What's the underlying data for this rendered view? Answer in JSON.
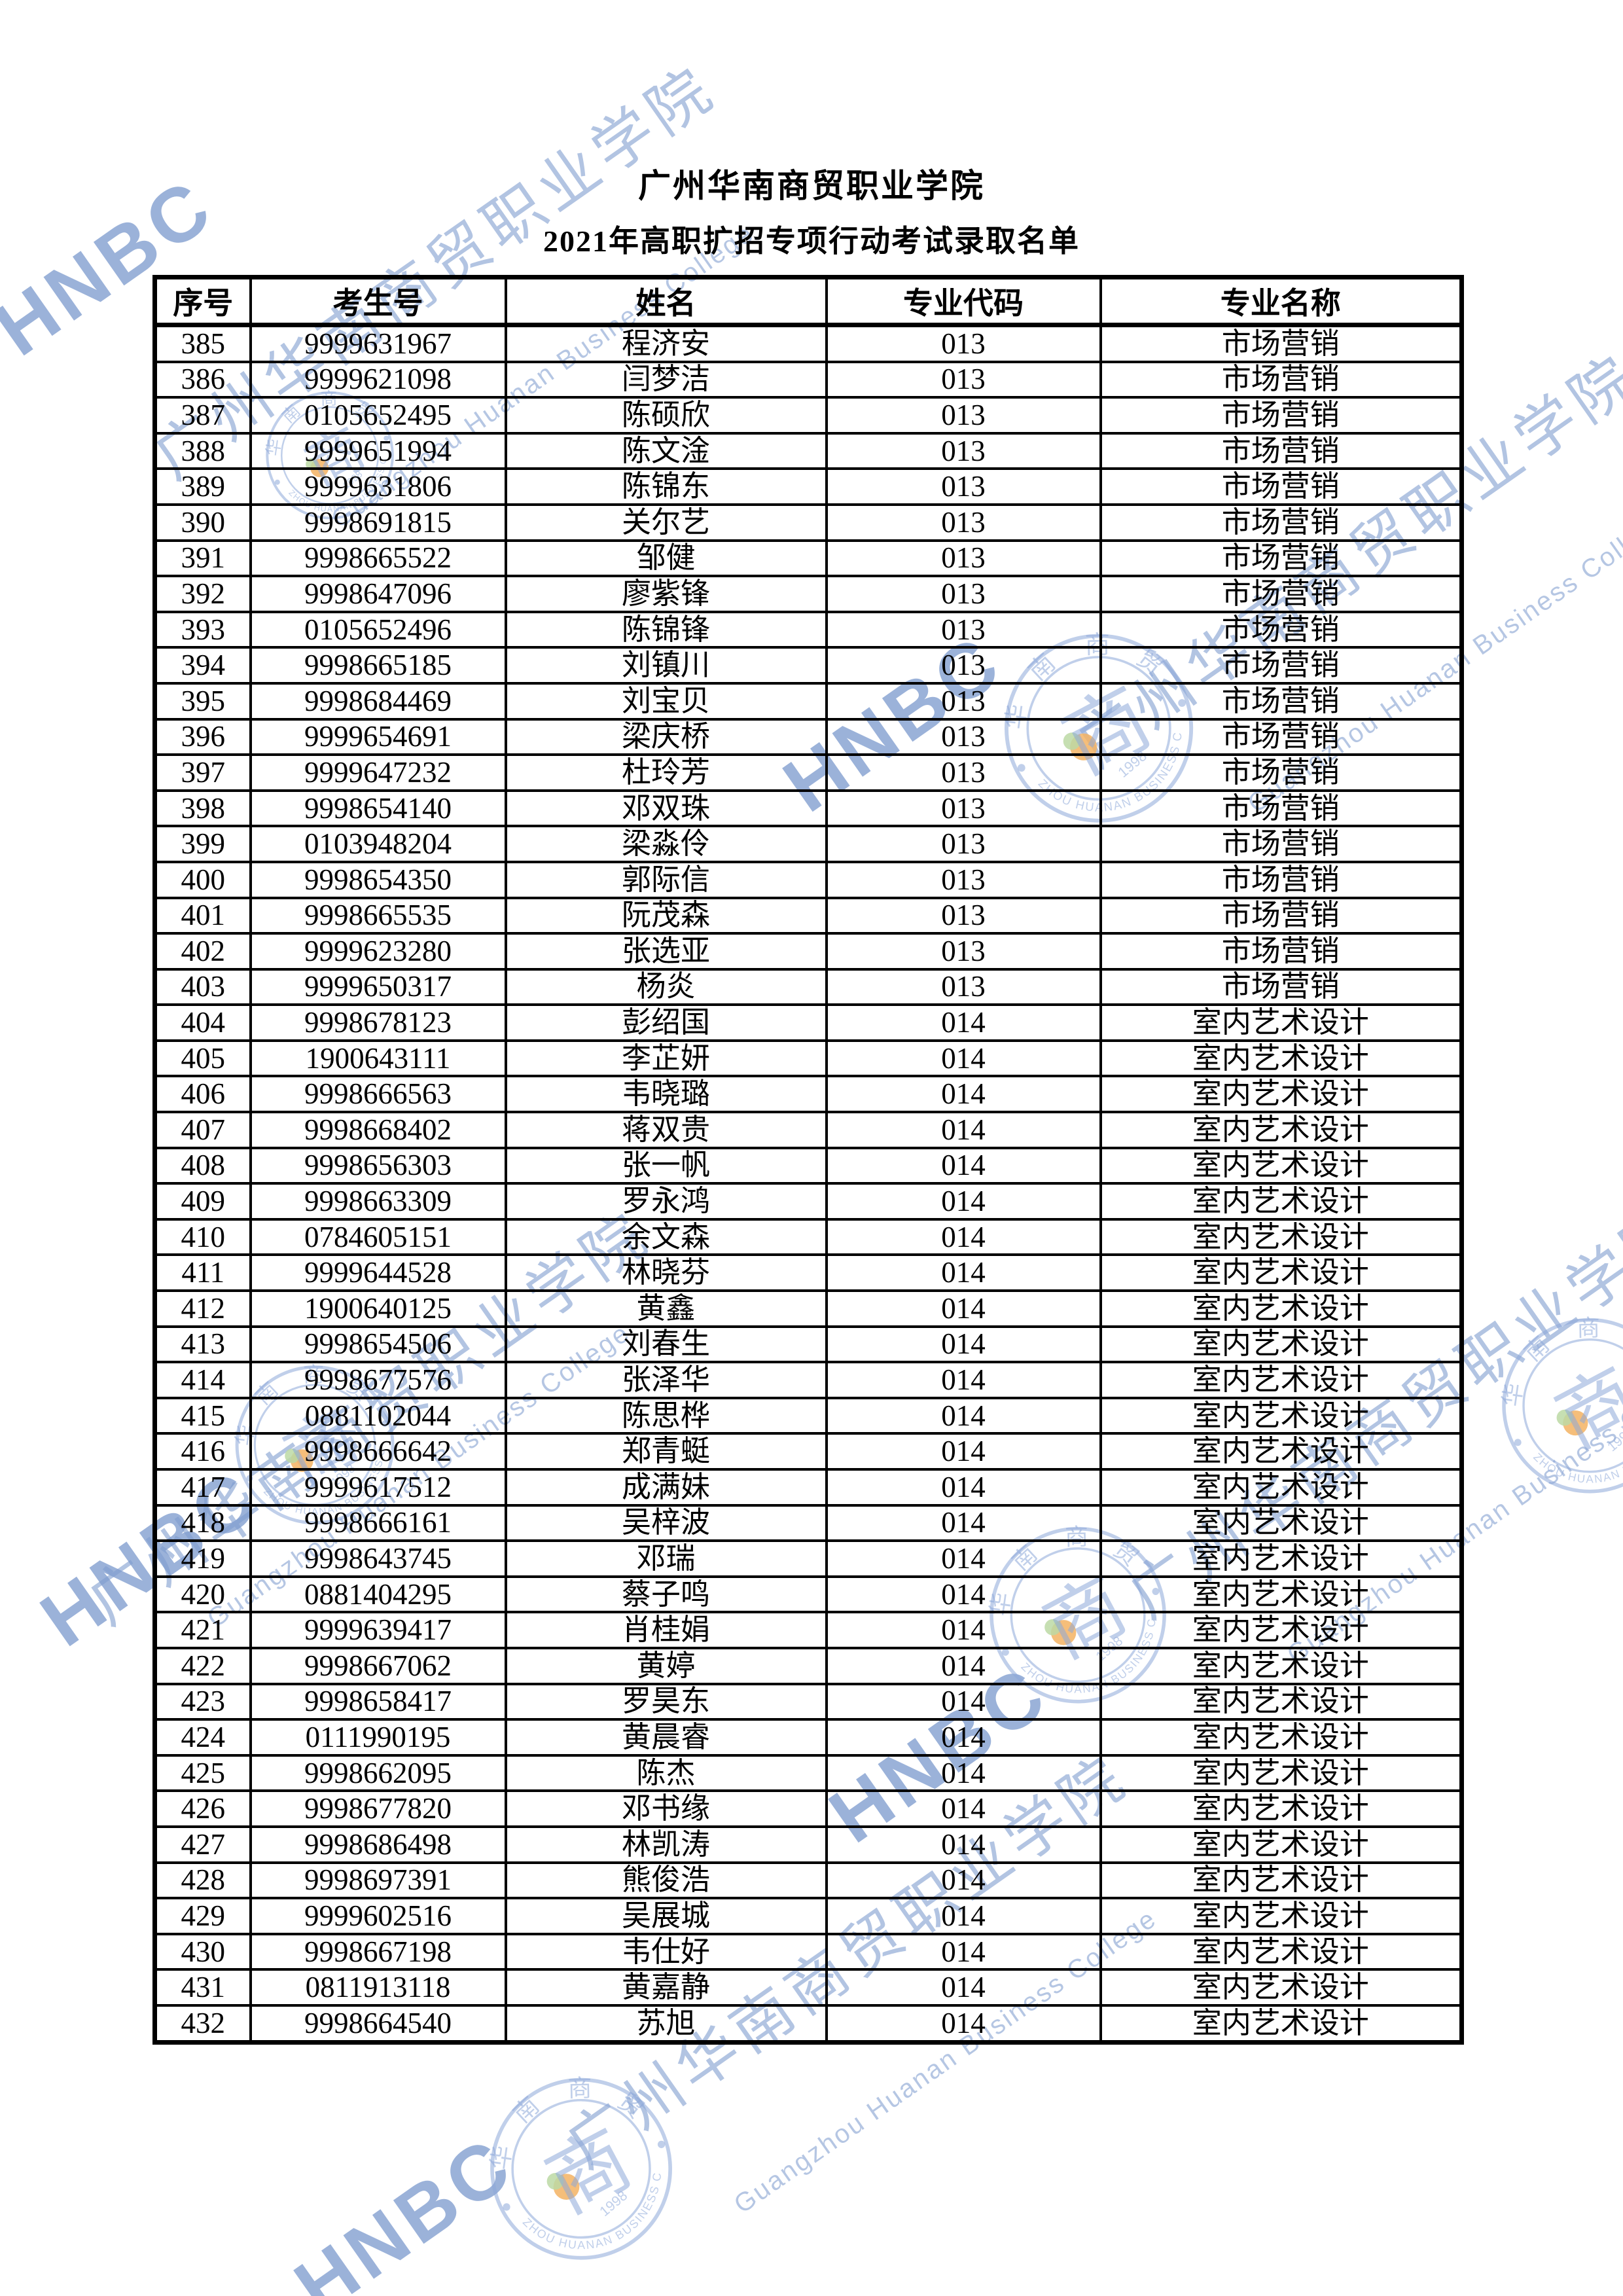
{
  "page": {
    "title_line1": "广州华南商贸职业学院",
    "title_line2": "2021年高职扩招专项行动考试录取名单"
  },
  "table": {
    "headers": [
      "序号",
      "考生号",
      "姓名",
      "专业代码",
      "专业名称"
    ],
    "rows": [
      [
        "385",
        "9999631967",
        "程济安",
        "013",
        "市场营销"
      ],
      [
        "386",
        "9999621098",
        "闫梦洁",
        "013",
        "市场营销"
      ],
      [
        "387",
        "0105652495",
        "陈硕欣",
        "013",
        "市场营销"
      ],
      [
        "388",
        "9999651994",
        "陈文淦",
        "013",
        "市场营销"
      ],
      [
        "389",
        "9999631806",
        "陈锦东",
        "013",
        "市场营销"
      ],
      [
        "390",
        "9998691815",
        "关尔艺",
        "013",
        "市场营销"
      ],
      [
        "391",
        "9998665522",
        "邹健",
        "013",
        "市场营销"
      ],
      [
        "392",
        "9998647096",
        "廖紫锋",
        "013",
        "市场营销"
      ],
      [
        "393",
        "0105652496",
        "陈锦锋",
        "013",
        "市场营销"
      ],
      [
        "394",
        "9998665185",
        "刘镇川",
        "013",
        "市场营销"
      ],
      [
        "395",
        "9998684469",
        "刘宝贝",
        "013",
        "市场营销"
      ],
      [
        "396",
        "9999654691",
        "梁庆桥",
        "013",
        "市场营销"
      ],
      [
        "397",
        "9999647232",
        "杜玲芳",
        "013",
        "市场营销"
      ],
      [
        "398",
        "9998654140",
        "邓双珠",
        "013",
        "市场营销"
      ],
      [
        "399",
        "0103948204",
        "梁淼伶",
        "013",
        "市场营销"
      ],
      [
        "400",
        "9998654350",
        "郭际信",
        "013",
        "市场营销"
      ],
      [
        "401",
        "9998665535",
        "阮茂森",
        "013",
        "市场营销"
      ],
      [
        "402",
        "9999623280",
        "张选亚",
        "013",
        "市场营销"
      ],
      [
        "403",
        "9999650317",
        "杨炎",
        "013",
        "市场营销"
      ],
      [
        "404",
        "9998678123",
        "彭绍国",
        "014",
        "室内艺术设计"
      ],
      [
        "405",
        "1900643111",
        "李芷妍",
        "014",
        "室内艺术设计"
      ],
      [
        "406",
        "9998666563",
        "韦晓璐",
        "014",
        "室内艺术设计"
      ],
      [
        "407",
        "9998668402",
        "蒋双贵",
        "014",
        "室内艺术设计"
      ],
      [
        "408",
        "9998656303",
        "张一帆",
        "014",
        "室内艺术设计"
      ],
      [
        "409",
        "9998663309",
        "罗永鸿",
        "014",
        "室内艺术设计"
      ],
      [
        "410",
        "0784605151",
        "余文森",
        "014",
        "室内艺术设计"
      ],
      [
        "411",
        "9999644528",
        "林晓芬",
        "014",
        "室内艺术设计"
      ],
      [
        "412",
        "1900640125",
        "黄鑫",
        "014",
        "室内艺术设计"
      ],
      [
        "413",
        "9998654506",
        "刘春生",
        "014",
        "室内艺术设计"
      ],
      [
        "414",
        "9998677576",
        "张泽华",
        "014",
        "室内艺术设计"
      ],
      [
        "415",
        "0881102044",
        "陈思桦",
        "014",
        "室内艺术设计"
      ],
      [
        "416",
        "9998666642",
        "郑青蜓",
        "014",
        "室内艺术设计"
      ],
      [
        "417",
        "9999617512",
        "成满妹",
        "014",
        "室内艺术设计"
      ],
      [
        "418",
        "9998666161",
        "吴梓波",
        "014",
        "室内艺术设计"
      ],
      [
        "419",
        "9998643745",
        "邓瑞",
        "014",
        "室内艺术设计"
      ],
      [
        "420",
        "0881404295",
        "蔡子鸣",
        "014",
        "室内艺术设计"
      ],
      [
        "421",
        "9999639417",
        "肖桂娟",
        "014",
        "室内艺术设计"
      ],
      [
        "422",
        "9998667062",
        "黄婷",
        "014",
        "室内艺术设计"
      ],
      [
        "423",
        "9998658417",
        "罗昊东",
        "014",
        "室内艺术设计"
      ],
      [
        "424",
        "0111990195",
        "黄晨睿",
        "014",
        "室内艺术设计"
      ],
      [
        "425",
        "9998662095",
        "陈杰",
        "014",
        "室内艺术设计"
      ],
      [
        "426",
        "9998677820",
        "邓书缘",
        "014",
        "室内艺术设计"
      ],
      [
        "427",
        "9998686498",
        "林凯涛",
        "014",
        "室内艺术设计"
      ],
      [
        "428",
        "9998697391",
        "熊俊浩",
        "014",
        "室内艺术设计"
      ],
      [
        "429",
        "9999602516",
        "吴展城",
        "014",
        "室内艺术设计"
      ],
      [
        "430",
        "9998667198",
        "韦仕好",
        "014",
        "室内艺术设计"
      ],
      [
        "431",
        "0811913118",
        "黄嘉静",
        "014",
        "室内艺术设计"
      ],
      [
        "432",
        "9998664540",
        "苏旭",
        "014",
        "室内艺术设计"
      ]
    ]
  },
  "watermark": {
    "cn_text": "广州华南商贸职业学院",
    "en_text": "Guangzhou Huanan Business College",
    "abbr": "HNBC",
    "color": "#7f9cce",
    "seal": {
      "arc_top_chars": [
        "华",
        "南",
        "商",
        "贸"
      ],
      "center_glyph": "商",
      "year": "1998",
      "ring_text": "GUANGZHOU HUANAN BUSINESS COLLEGE"
    }
  }
}
